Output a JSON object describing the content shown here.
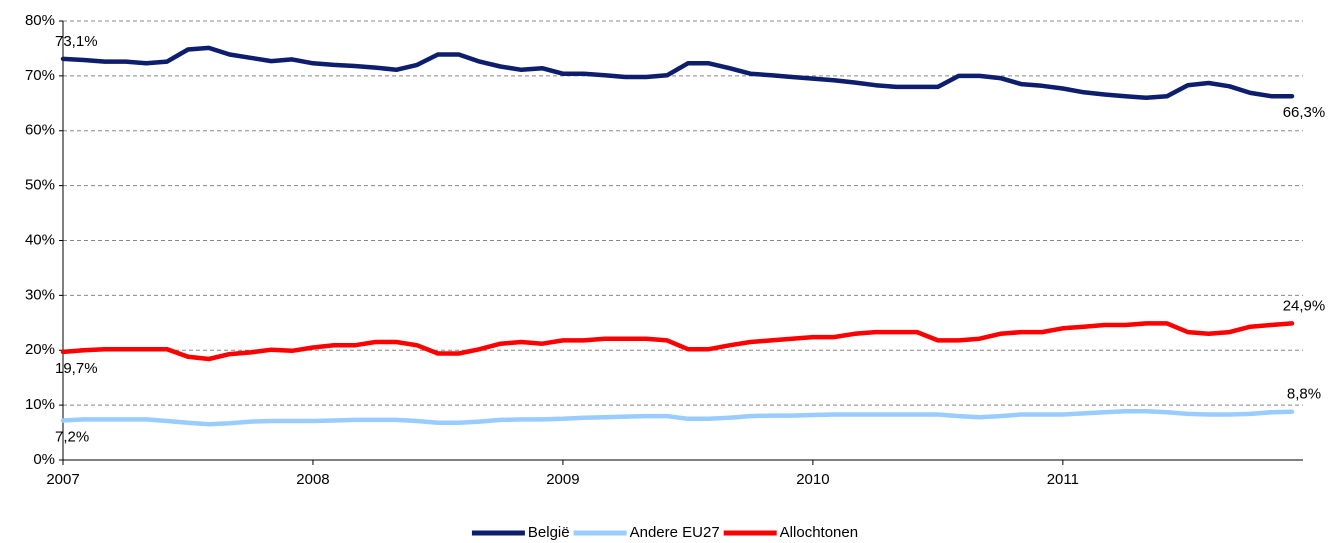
{
  "chart_data": {
    "type": "line",
    "categories": [
      "2007",
      null,
      null,
      null,
      null,
      null,
      null,
      null,
      null,
      null,
      null,
      null,
      "2008",
      null,
      null,
      null,
      null,
      null,
      null,
      null,
      null,
      null,
      null,
      null,
      "2009",
      null,
      null,
      null,
      null,
      null,
      null,
      null,
      null,
      null,
      null,
      null,
      "2010",
      null,
      null,
      null,
      null,
      null,
      null,
      null,
      null,
      null,
      null,
      null,
      "2011",
      null,
      null,
      null,
      null,
      null,
      null,
      null,
      null,
      null,
      null,
      null
    ],
    "series": [
      {
        "name": "België",
        "color": "#0d1e6e",
        "values": [
          73.1,
          72.9,
          72.6,
          72.6,
          72.3,
          72.6,
          74.8,
          75.1,
          73.9,
          73.3,
          72.7,
          73.0,
          72.3,
          72.0,
          71.8,
          71.5,
          71.1,
          72.0,
          73.9,
          73.9,
          72.6,
          71.7,
          71.1,
          71.4,
          70.4,
          70.4,
          70.1,
          69.8,
          69.8,
          70.1,
          72.3,
          72.3,
          71.4,
          70.4,
          70.1,
          69.8,
          69.5,
          69.2,
          68.8,
          68.3,
          68.0,
          68.0,
          68.0,
          70.0,
          70.0,
          69.6,
          68.5,
          68.2,
          67.7,
          67.0,
          66.6,
          66.3,
          66.0,
          66.3,
          68.3,
          68.7,
          68.1,
          66.9,
          66.3,
          66.3
        ],
        "value_labels": [
          "73,1%",
          null,
          null,
          null,
          null,
          null,
          null,
          null,
          null,
          null,
          null,
          null,
          null,
          null,
          null,
          null,
          null,
          null,
          null,
          null,
          null,
          null,
          null,
          null,
          null,
          null,
          null,
          null,
          null,
          null,
          null,
          null,
          null,
          null,
          null,
          null,
          null,
          null,
          null,
          null,
          null,
          null,
          null,
          null,
          null,
          null,
          null,
          null,
          null,
          null,
          null,
          null,
          null,
          null,
          null,
          null,
          null,
          null,
          null,
          "66,3%"
        ]
      },
      {
        "name": "Andere EU27",
        "color": "#99ccff",
        "values": [
          7.2,
          7.4,
          7.4,
          7.4,
          7.4,
          7.1,
          6.8,
          6.5,
          6.7,
          7.0,
          7.1,
          7.1,
          7.1,
          7.2,
          7.3,
          7.3,
          7.3,
          7.1,
          6.8,
          6.8,
          7.0,
          7.3,
          7.4,
          7.4,
          7.5,
          7.7,
          7.8,
          7.9,
          8.0,
          8.0,
          7.5,
          7.5,
          7.7,
          8.0,
          8.1,
          8.1,
          8.2,
          8.3,
          8.3,
          8.3,
          8.3,
          8.3,
          8.3,
          8.0,
          7.8,
          8.0,
          8.3,
          8.3,
          8.3,
          8.5,
          8.7,
          8.9,
          8.9,
          8.7,
          8.4,
          8.3,
          8.3,
          8.4,
          8.7,
          8.8
        ],
        "value_labels": [
          "7,2%",
          null,
          null,
          null,
          null,
          null,
          null,
          null,
          null,
          null,
          null,
          null,
          null,
          null,
          null,
          null,
          null,
          null,
          null,
          null,
          null,
          null,
          null,
          null,
          null,
          null,
          null,
          null,
          null,
          null,
          null,
          null,
          null,
          null,
          null,
          null,
          null,
          null,
          null,
          null,
          null,
          null,
          null,
          null,
          null,
          null,
          null,
          null,
          null,
          null,
          null,
          null,
          null,
          null,
          null,
          null,
          null,
          null,
          null,
          "8,8%"
        ]
      },
      {
        "name": "Allochtonen",
        "color": "#ff0000",
        "values": [
          19.7,
          20.0,
          20.2,
          20.2,
          20.2,
          20.2,
          18.8,
          18.4,
          19.3,
          19.6,
          20.1,
          19.9,
          20.5,
          20.9,
          20.9,
          21.5,
          21.5,
          20.9,
          19.4,
          19.4,
          20.2,
          21.2,
          21.5,
          21.2,
          21.8,
          21.8,
          22.1,
          22.1,
          22.1,
          21.8,
          20.2,
          20.2,
          20.9,
          21.5,
          21.8,
          22.1,
          22.4,
          22.4,
          23.0,
          23.3,
          23.3,
          23.3,
          21.8,
          21.8,
          22.1,
          23.0,
          23.3,
          23.3,
          24.0,
          24.3,
          24.6,
          24.6,
          24.9,
          24.9,
          23.3,
          23.0,
          23.3,
          24.3,
          24.6,
          24.9
        ],
        "value_labels": [
          "19,7%",
          null,
          null,
          null,
          null,
          null,
          null,
          null,
          null,
          null,
          null,
          null,
          null,
          null,
          null,
          null,
          null,
          null,
          null,
          null,
          null,
          null,
          null,
          null,
          null,
          null,
          null,
          null,
          null,
          null,
          null,
          null,
          null,
          null,
          null,
          null,
          null,
          null,
          null,
          null,
          null,
          null,
          null,
          null,
          null,
          null,
          null,
          null,
          null,
          null,
          null,
          null,
          null,
          null,
          null,
          null,
          null,
          null,
          null,
          "24,9%"
        ]
      }
    ],
    "ylim": [
      0,
      80
    ],
    "yticks": [
      {
        "value": 0,
        "label": "0%"
      },
      {
        "value": 10,
        "label": "10%"
      },
      {
        "value": 20,
        "label": "20%"
      },
      {
        "value": 30,
        "label": "30%"
      },
      {
        "value": 40,
        "label": "40%"
      },
      {
        "value": 50,
        "label": "50%"
      },
      {
        "value": 60,
        "label": "60%"
      },
      {
        "value": 70,
        "label": "70%"
      },
      {
        "value": 80,
        "label": "80%"
      }
    ],
    "grid": true,
    "legend": "bottom"
  }
}
